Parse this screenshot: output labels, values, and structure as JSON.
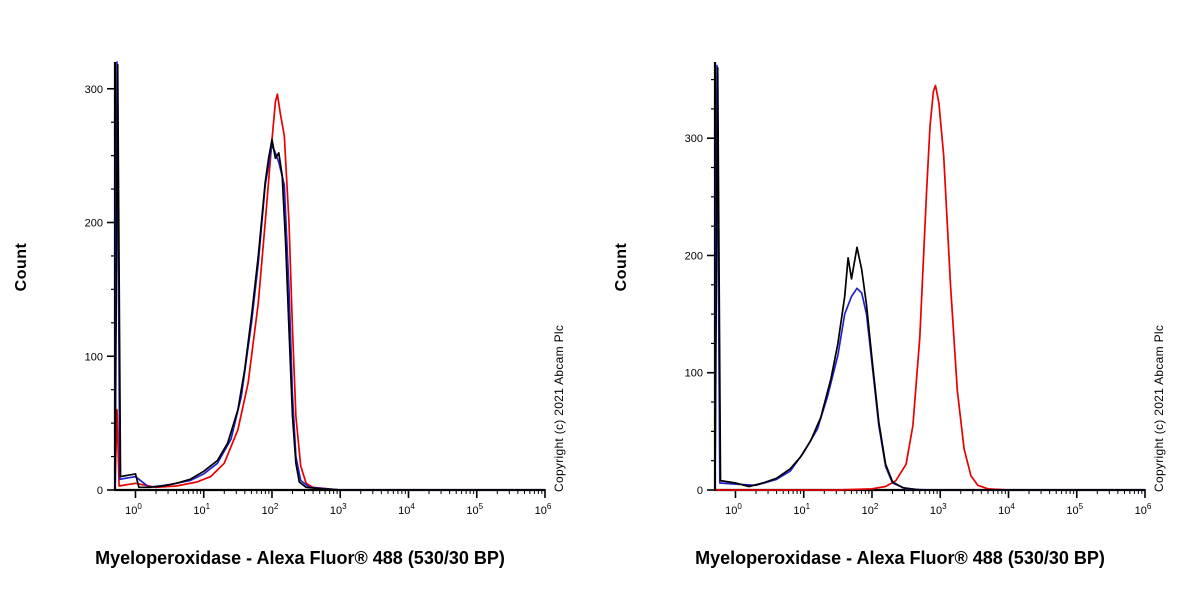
{
  "chart_data": [
    {
      "type": "line",
      "title": "",
      "xlabel": "Myeloperoxidase - Alexa Fluor® 488 (530/30 BP)",
      "ylabel": "Count",
      "copyright": "Copyright (c) 2021 Abcam Plc",
      "x_scale": "log10",
      "xlim_log": [
        -0.3,
        6
      ],
      "ylim": [
        0,
        320
      ],
      "y_ticks": [
        0,
        100,
        200,
        300
      ],
      "y_minor_step": 25,
      "x_ticks_exponents": [
        0,
        1,
        2,
        3,
        4,
        5,
        6
      ],
      "grid": false,
      "legend": "none",
      "series": [
        {
          "name": "red-labelled",
          "color": "#e80000",
          "points": [
            [
              -0.3,
              0
            ],
            [
              -0.27,
              60
            ],
            [
              -0.24,
              3
            ],
            [
              0.0,
              5
            ],
            [
              0.3,
              2
            ],
            [
              0.6,
              3
            ],
            [
              0.9,
              6
            ],
            [
              1.1,
              10
            ],
            [
              1.3,
              20
            ],
            [
              1.5,
              45
            ],
            [
              1.65,
              80
            ],
            [
              1.8,
              140
            ],
            [
              1.9,
              200
            ],
            [
              2.0,
              262
            ],
            [
              2.05,
              290
            ],
            [
              2.08,
              296
            ],
            [
              2.12,
              282
            ],
            [
              2.18,
              265
            ],
            [
              2.25,
              200
            ],
            [
              2.3,
              120
            ],
            [
              2.35,
              55
            ],
            [
              2.42,
              18
            ],
            [
              2.5,
              5
            ],
            [
              2.6,
              2
            ],
            [
              3.0,
              0
            ],
            [
              6.0,
              0
            ]
          ]
        },
        {
          "name": "blue-control",
          "color": "#2222cc",
          "points": [
            [
              -0.3,
              0
            ],
            [
              -0.27,
              320
            ],
            [
              -0.23,
              8
            ],
            [
              0.0,
              10
            ],
            [
              0.2,
              2
            ],
            [
              0.5,
              4
            ],
            [
              0.8,
              7
            ],
            [
              1.0,
              12
            ],
            [
              1.2,
              20
            ],
            [
              1.4,
              38
            ],
            [
              1.55,
              70
            ],
            [
              1.7,
              125
            ],
            [
              1.8,
              170
            ],
            [
              1.9,
              228
            ],
            [
              2.0,
              258
            ],
            [
              2.05,
              252
            ],
            [
              2.1,
              245
            ],
            [
              2.18,
              228
            ],
            [
              2.25,
              150
            ],
            [
              2.3,
              70
            ],
            [
              2.35,
              25
            ],
            [
              2.42,
              7
            ],
            [
              2.55,
              2
            ],
            [
              3.0,
              0
            ],
            [
              6.0,
              0
            ]
          ]
        },
        {
          "name": "black-control",
          "color": "#000000",
          "points": [
            [
              -0.3,
              0
            ],
            [
              -0.26,
              318
            ],
            [
              -0.22,
              10
            ],
            [
              0.0,
              12
            ],
            [
              0.05,
              2
            ],
            [
              0.2,
              2
            ],
            [
              0.4,
              3
            ],
            [
              0.6,
              5
            ],
            [
              0.8,
              8
            ],
            [
              1.0,
              14
            ],
            [
              1.2,
              22
            ],
            [
              1.35,
              35
            ],
            [
              1.5,
              60
            ],
            [
              1.6,
              90
            ],
            [
              1.7,
              130
            ],
            [
              1.8,
              175
            ],
            [
              1.9,
              230
            ],
            [
              1.95,
              248
            ],
            [
              2.0,
              262
            ],
            [
              2.05,
              248
            ],
            [
              2.1,
              252
            ],
            [
              2.15,
              235
            ],
            [
              2.2,
              185
            ],
            [
              2.25,
              120
            ],
            [
              2.3,
              55
            ],
            [
              2.35,
              20
            ],
            [
              2.4,
              6
            ],
            [
              2.5,
              2
            ],
            [
              2.7,
              1
            ],
            [
              3.0,
              0
            ],
            [
              6.0,
              0
            ]
          ]
        }
      ]
    },
    {
      "type": "line",
      "title": "",
      "xlabel": "Myeloperoxidase - Alexa Fluor® 488 (530/30 BP)",
      "ylabel": "Count",
      "copyright": "Copyright (c) 2021 Abcam Plc",
      "x_scale": "log10",
      "xlim_log": [
        -0.3,
        6
      ],
      "ylim": [
        0,
        365
      ],
      "y_ticks": [
        0,
        100,
        200,
        300
      ],
      "y_minor_step": 25,
      "x_ticks_exponents": [
        0,
        1,
        2,
        3,
        4,
        5,
        6
      ],
      "grid": false,
      "legend": "none",
      "series": [
        {
          "name": "red-labelled",
          "color": "#e80000",
          "points": [
            [
              -0.3,
              0
            ],
            [
              0.5,
              0
            ],
            [
              1.5,
              0
            ],
            [
              2.0,
              1
            ],
            [
              2.2,
              3
            ],
            [
              2.35,
              8
            ],
            [
              2.5,
              22
            ],
            [
              2.6,
              55
            ],
            [
              2.7,
              130
            ],
            [
              2.8,
              255
            ],
            [
              2.85,
              310
            ],
            [
              2.9,
              340
            ],
            [
              2.93,
              345
            ],
            [
              2.98,
              330
            ],
            [
              3.05,
              285
            ],
            [
              3.15,
              175
            ],
            [
              3.25,
              85
            ],
            [
              3.35,
              35
            ],
            [
              3.45,
              12
            ],
            [
              3.55,
              4
            ],
            [
              3.7,
              1
            ],
            [
              4.0,
              0
            ],
            [
              6.0,
              0
            ]
          ]
        },
        {
          "name": "blue-control",
          "color": "#2222cc",
          "points": [
            [
              -0.3,
              0
            ],
            [
              -0.27,
              362
            ],
            [
              -0.23,
              6
            ],
            [
              0.0,
              5
            ],
            [
              0.3,
              4
            ],
            [
              0.6,
              9
            ],
            [
              0.8,
              16
            ],
            [
              1.0,
              32
            ],
            [
              1.2,
              52
            ],
            [
              1.35,
              80
            ],
            [
              1.5,
              115
            ],
            [
              1.6,
              150
            ],
            [
              1.7,
              165
            ],
            [
              1.78,
              172
            ],
            [
              1.85,
              168
            ],
            [
              1.92,
              150
            ],
            [
              2.0,
              108
            ],
            [
              2.1,
              55
            ],
            [
              2.2,
              20
            ],
            [
              2.3,
              6
            ],
            [
              2.5,
              1
            ],
            [
              2.8,
              0
            ],
            [
              6.0,
              0
            ]
          ]
        },
        {
          "name": "black-control",
          "color": "#000000",
          "points": [
            [
              -0.3,
              0
            ],
            [
              -0.26,
              360
            ],
            [
              -0.22,
              8
            ],
            [
              0.0,
              6
            ],
            [
              0.2,
              3
            ],
            [
              0.4,
              6
            ],
            [
              0.6,
              10
            ],
            [
              0.8,
              18
            ],
            [
              0.95,
              28
            ],
            [
              1.1,
              42
            ],
            [
              1.25,
              62
            ],
            [
              1.4,
              95
            ],
            [
              1.5,
              125
            ],
            [
              1.6,
              165
            ],
            [
              1.65,
              198
            ],
            [
              1.7,
              180
            ],
            [
              1.78,
              207
            ],
            [
              1.85,
              188
            ],
            [
              1.92,
              158
            ],
            [
              2.0,
              112
            ],
            [
              2.1,
              58
            ],
            [
              2.2,
              22
            ],
            [
              2.3,
              7
            ],
            [
              2.45,
              2
            ],
            [
              2.7,
              0
            ],
            [
              6.0,
              0
            ]
          ]
        }
      ]
    }
  ]
}
